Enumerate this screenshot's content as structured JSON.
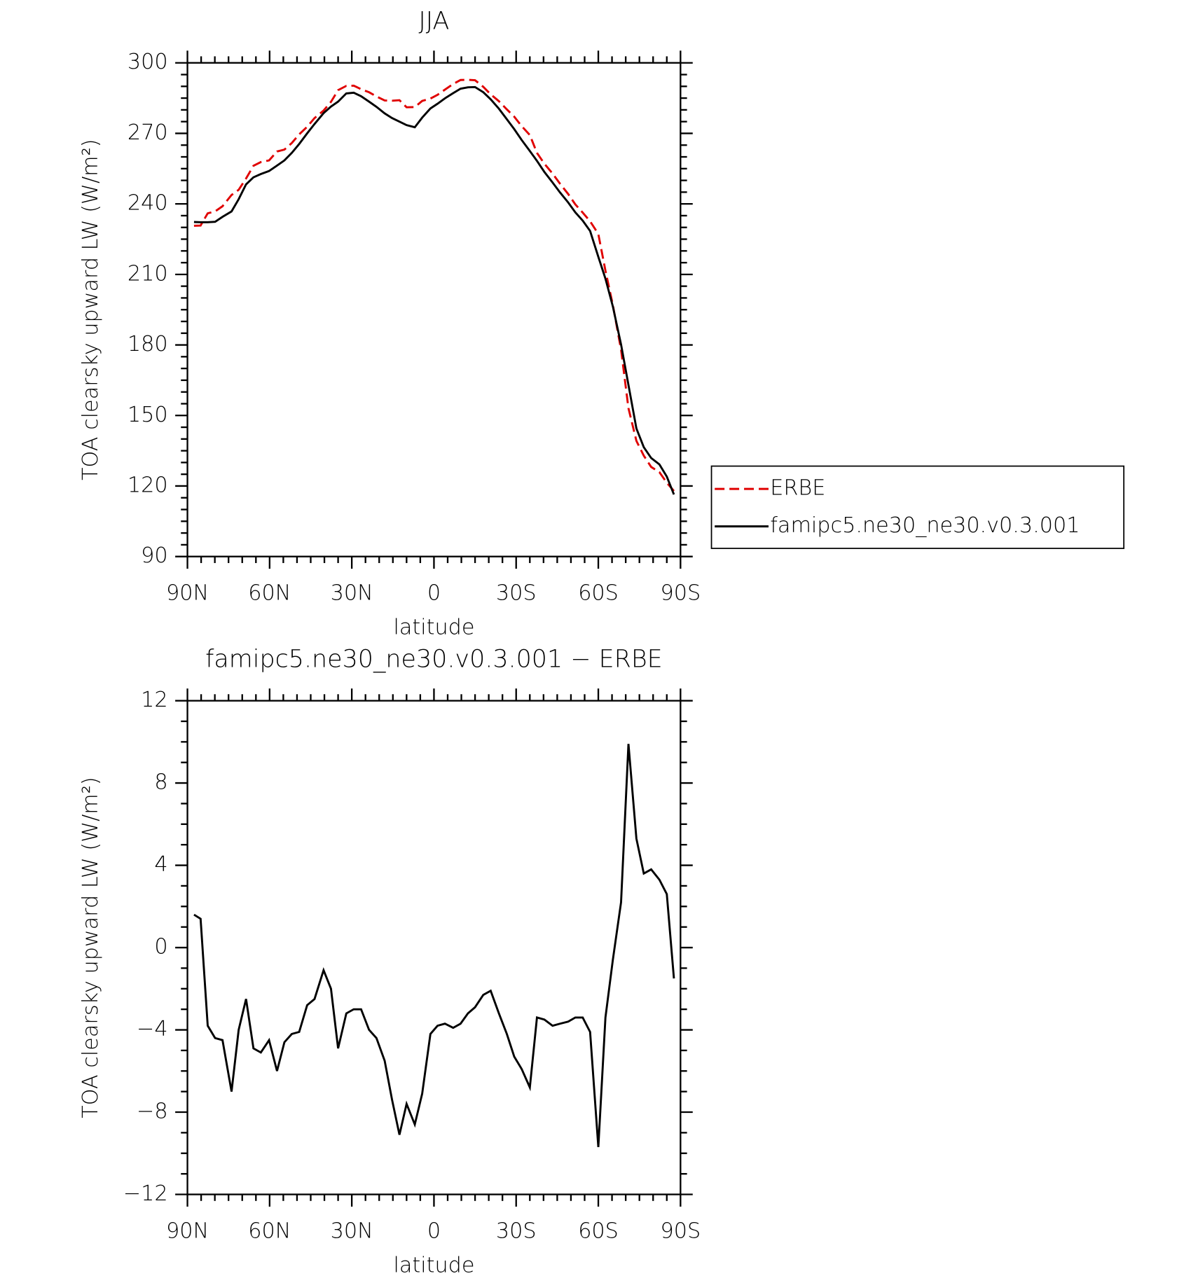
{
  "chart_data": [
    {
      "type": "line",
      "title": "JJA",
      "xlabel": "latitude",
      "ylabel": "TOA clearsky upward LW (W/m²)",
      "x": [
        87.6,
        85.2,
        82.6,
        79.9,
        77.2,
        73.9,
        71.3,
        68.6,
        65.9,
        63.2,
        60.2,
        57.3,
        54.6,
        51.9,
        49.2,
        46.3,
        43.6,
        40.3,
        37.6,
        35.0,
        32.0,
        29.3,
        26.6,
        23.7,
        21.0,
        18.0,
        15.3,
        12.6,
        10.0,
        7.0,
        4.3,
        1.3,
        -1.3,
        -4.0,
        -7.0,
        -9.7,
        -12.4,
        -15.0,
        -18.0,
        -20.7,
        -23.7,
        -26.6,
        -29.3,
        -32.0,
        -35.0,
        -37.6,
        -40.3,
        -43.3,
        -46.0,
        -49.0,
        -51.6,
        -54.3,
        -57.0,
        -60.0,
        -62.6,
        -65.3,
        -68.3,
        -71.0,
        -73.9,
        -76.6,
        -79.3,
        -82.3,
        -85.0,
        -87.6
      ],
      "series": [
        {
          "name": "ERBE",
          "color": "#e00000",
          "linestyle": "dashed",
          "values": [
            230.7,
            230.8,
            236.0,
            236.8,
            239.0,
            243.8,
            246.0,
            250.8,
            256.2,
            257.8,
            258.5,
            262.3,
            263.1,
            265.9,
            269.6,
            272.8,
            276.5,
            279.7,
            283.4,
            288.4,
            290.2,
            290.3,
            288.8,
            287.5,
            285.7,
            284.0,
            283.9,
            284.1,
            281.1,
            281.2,
            283.8,
            284.8,
            286.4,
            288.6,
            291.0,
            292.7,
            292.8,
            292.6,
            289.8,
            286.6,
            283.7,
            280.2,
            277.1,
            273.1,
            269.3,
            261.7,
            257.1,
            252.9,
            248.6,
            244.2,
            239.8,
            236.3,
            232.6,
            227.2,
            211.6,
            197.0,
            178.0,
            153.1,
            139.2,
            132.9,
            128.1,
            125.9,
            121.4,
            117.9
          ]
        },
        {
          "name": "famipc5.ne30_ne30.v0.3.001",
          "color": "#000000",
          "linestyle": "solid",
          "values": [
            232.3,
            232.2,
            232.2,
            232.4,
            234.5,
            236.8,
            242,
            248.3,
            251.3,
            252.7,
            254,
            256.3,
            258.5,
            261.7,
            265.5,
            270,
            274,
            278.6,
            281.4,
            283.5,
            287,
            287.3,
            285.8,
            283.5,
            281.3,
            278.5,
            276.5,
            275,
            273.5,
            272.6,
            276.7,
            280.6,
            282.6,
            284.9,
            287.1,
            289,
            289.6,
            289.7,
            287.5,
            284.5,
            280.5,
            276,
            271.8,
            267.2,
            262.5,
            258.3,
            253.6,
            249.1,
            244.9,
            240.6,
            236.4,
            232.9,
            228.5,
            217.5,
            208.2,
            196.4,
            180.2,
            163,
            144.5,
            136.5,
            131.9,
            129.2,
            124,
            116.4
          ]
        }
      ],
      "xlim": [
        90,
        -90
      ],
      "xticks": [
        {
          "value": 90,
          "label": "90N"
        },
        {
          "value": 60,
          "label": "60N"
        },
        {
          "value": 30,
          "label": "30N"
        },
        0,
        {
          "value": -30,
          "label": "30S"
        },
        {
          "value": -60,
          "label": "60S"
        },
        {
          "value": -90,
          "label": "90S"
        }
      ],
      "ylim": [
        90,
        300
      ],
      "yticks": [
        90,
        120,
        150,
        180,
        210,
        240,
        270,
        300
      ],
      "legend": "outside-right"
    },
    {
      "type": "line",
      "title": "famipc5.ne30_ne30.v0.3.001 − ERBE",
      "xlabel": "latitude",
      "ylabel": "TOA clearsky upward LW (W/m²)",
      "x": [
        87.6,
        85.2,
        82.6,
        79.9,
        77.2,
        73.9,
        71.3,
        68.6,
        65.9,
        63.2,
        60.2,
        57.3,
        54.6,
        51.9,
        49.2,
        46.3,
        43.6,
        40.3,
        37.6,
        35.0,
        32.0,
        29.3,
        26.6,
        23.7,
        21.0,
        18.0,
        15.3,
        12.6,
        10.0,
        7.0,
        4.3,
        1.3,
        -1.3,
        -4.0,
        -7.0,
        -9.7,
        -12.4,
        -15.0,
        -18.0,
        -20.7,
        -23.7,
        -26.6,
        -29.3,
        -32.0,
        -35.0,
        -37.6,
        -40.3,
        -43.3,
        -46.0,
        -49.0,
        -51.6,
        -54.3,
        -57.0,
        -60.0,
        -62.6,
        -65.3,
        -68.3,
        -71.0,
        -73.9,
        -76.6,
        -79.3,
        -82.3,
        -85.0,
        -87.6
      ],
      "series": [
        {
          "color": "#000000",
          "linestyle": "solid",
          "values": [
            1.6,
            1.4,
            -3.8,
            -4.4,
            -4.5,
            -7.0,
            -4.0,
            -2.5,
            -4.9,
            -5.1,
            -4.5,
            -6.0,
            -4.6,
            -4.2,
            -4.1,
            -2.8,
            -2.5,
            -1.1,
            -2.0,
            -4.9,
            -3.2,
            -3.0,
            -3.0,
            -4.0,
            -4.4,
            -5.5,
            -7.4,
            -9.1,
            -7.6,
            -8.6,
            -7.1,
            -4.2,
            -3.8,
            -3.7,
            -3.9,
            -3.7,
            -3.2,
            -2.9,
            -2.3,
            -2.1,
            -3.2,
            -4.2,
            -5.3,
            -5.9,
            -6.8,
            -3.4,
            -3.5,
            -3.8,
            -3.7,
            -3.6,
            -3.4,
            -3.4,
            -4.1,
            -9.7,
            -3.4,
            -0.6,
            2.2,
            9.9,
            5.3,
            3.6,
            3.8,
            3.3,
            2.6,
            -1.5
          ]
        }
      ],
      "xlim": [
        90,
        -90
      ],
      "xticks": [
        {
          "value": 90,
          "label": "90N"
        },
        {
          "value": 60,
          "label": "60N"
        },
        {
          "value": 30,
          "label": "30N"
        },
        0,
        {
          "value": -30,
          "label": "30S"
        },
        {
          "value": -60,
          "label": "60S"
        },
        {
          "value": -90,
          "label": "90S"
        }
      ],
      "ylim": [
        -12,
        12
      ],
      "yticks": [
        {
          "value": -12,
          "label": "−12"
        },
        {
          "value": -8,
          "label": "−8"
        },
        {
          "value": -4,
          "label": "−4"
        },
        0,
        4,
        8,
        12
      ]
    }
  ]
}
